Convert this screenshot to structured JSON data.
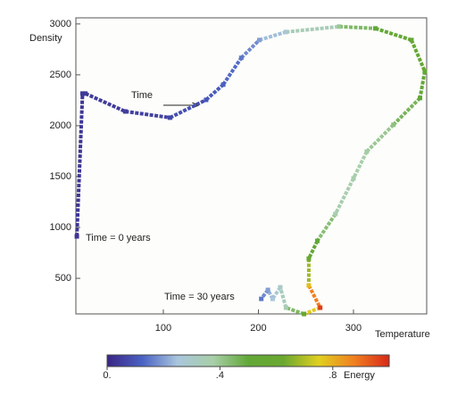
{
  "chart_data": {
    "type": "scatter",
    "x_label": "Temperature",
    "y_label": "Density",
    "x": [
      9,
      15,
      18,
      60,
      107,
      145,
      163,
      182,
      201,
      229,
      285,
      323,
      361,
      375,
      370,
      342,
      314,
      300,
      281,
      262,
      253,
      253,
      265,
      248,
      229,
      223,
      215,
      210,
      203
    ],
    "y": [
      912,
      2316,
      2316,
      2140,
      2079,
      2254,
      2404,
      2667,
      2842,
      2921,
      2974,
      2956,
      2842,
      2535,
      2272,
      2009,
      1746,
      1482,
      1132,
      868,
      693,
      430,
      211,
      149,
      211,
      412,
      298,
      386,
      298
    ],
    "energy": [
      0.03,
      0.04,
      0.04,
      0.05,
      0.07,
      0.1,
      0.12,
      0.15,
      0.2,
      0.28,
      0.4,
      0.5,
      0.55,
      0.55,
      0.5,
      0.42,
      0.38,
      0.36,
      0.36,
      0.5,
      0.58,
      0.78,
      0.97,
      0.55,
      0.35,
      0.3,
      0.25,
      0.2,
      0.15
    ],
    "xlim": [
      8,
      377
    ],
    "ylim": [
      150,
      3060
    ],
    "xticks": [
      100,
      200,
      300
    ],
    "yticks": [
      500,
      1000,
      1500,
      2000,
      2500,
      3000
    ],
    "colormap": [
      "#3a2585",
      "#4a62c4",
      "#a9c6dc",
      "#a8cfa8",
      "#62a838",
      "#6aa830",
      "#e0d020",
      "#f08020",
      "#d82818"
    ],
    "colorbar_label": "Energy",
    "colorbar_lim": [
      0,
      1
    ],
    "colorbar_ticks": [
      {
        "value": 0,
        "label": "0."
      },
      {
        "value": 0.4,
        "label": ".4"
      },
      {
        "value": 0.8,
        "label": ".8"
      }
    ],
    "annotations": [
      "Time",
      "Time = 0 years",
      "Time = 30 years"
    ]
  }
}
